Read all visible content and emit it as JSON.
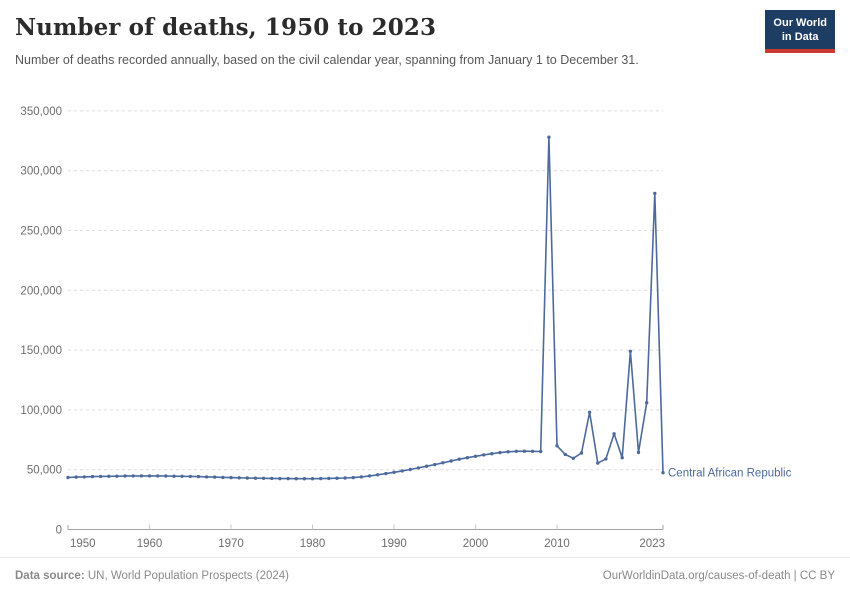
{
  "header": {
    "title": "Number of deaths, 1950 to 2023",
    "subtitle": "Number of deaths recorded annually, based on the civil calendar year, spanning from January 1 to December 31."
  },
  "logo": {
    "line1": "Our World",
    "line2": "in Data"
  },
  "chart_data": {
    "type": "line",
    "title": "Number of deaths, 1950 to 2023",
    "xlabel": "",
    "ylabel": "",
    "ylim": [
      0,
      350000
    ],
    "grid": "dashed-horizontal",
    "legend": "end-of-line-label",
    "x": [
      1950,
      1951,
      1952,
      1953,
      1954,
      1955,
      1956,
      1957,
      1958,
      1959,
      1960,
      1961,
      1962,
      1963,
      1964,
      1965,
      1966,
      1967,
      1968,
      1969,
      1970,
      1971,
      1972,
      1973,
      1974,
      1975,
      1976,
      1977,
      1978,
      1979,
      1980,
      1981,
      1982,
      1983,
      1984,
      1985,
      1986,
      1987,
      1988,
      1989,
      1990,
      1991,
      1992,
      1993,
      1994,
      1995,
      1996,
      1997,
      1998,
      1999,
      2000,
      2001,
      2002,
      2003,
      2004,
      2005,
      2006,
      2007,
      2008,
      2009,
      2010,
      2011,
      2012,
      2013,
      2014,
      2015,
      2016,
      2017,
      2018,
      2019,
      2020,
      2021,
      2022,
      2023
    ],
    "series": [
      {
        "name": "Central African Republic",
        "values": [
          43500,
          43800,
          44000,
          44200,
          44400,
          44500,
          44600,
          44700,
          44800,
          44800,
          44800,
          44800,
          44700,
          44600,
          44500,
          44400,
          44200,
          44000,
          43800,
          43600,
          43400,
          43200,
          43100,
          42900,
          42800,
          42700,
          42600,
          42600,
          42500,
          42500,
          42500,
          42600,
          42700,
          42900,
          43100,
          43400,
          44000,
          44800,
          45700,
          46700,
          47800,
          49000,
          50200,
          51500,
          52900,
          54300,
          55800,
          57300,
          58800,
          60000,
          61200,
          62400,
          63400,
          64300,
          65000,
          65400,
          65500,
          65400,
          65200,
          328000,
          70000,
          62800,
          59500,
          64000,
          98000,
          55500,
          59000,
          80000,
          60000,
          149000,
          64500,
          106000,
          281000,
          47500
        ]
      }
    ],
    "yticks": {
      "values": [
        0,
        50000,
        100000,
        150000,
        200000,
        250000,
        300000,
        350000
      ],
      "labels": [
        "0",
        "50,000",
        "100,000",
        "150,000",
        "200,000",
        "250,000",
        "300,000",
        "350,000"
      ]
    },
    "xticks": {
      "values": [
        1950,
        1960,
        1970,
        1980,
        1990,
        2000,
        2010,
        2023
      ],
      "labels": [
        "1950",
        "1960",
        "1970",
        "1980",
        "1990",
        "2000",
        "2010",
        "2023"
      ]
    },
    "colors": {
      "line": "#4c6a9c",
      "grid": "#dcdcdc",
      "axis": "#a3a3a3",
      "tick": "#c9c9c9",
      "tick_text": "#6e6e6e",
      "entity_label": "#4c6a9c"
    }
  },
  "footer": {
    "source_prefix": "Data source:",
    "source": " UN, World Population Prospects (2024)",
    "url": "OurWorldinData.org/causes-of-death",
    "license": " | CC BY"
  }
}
